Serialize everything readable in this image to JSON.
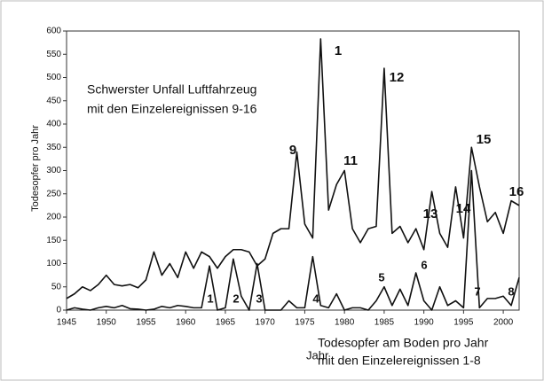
{
  "chart_data": {
    "type": "line",
    "ylabel": "Todesopfer pro Jahr",
    "xlabel": "Jahr",
    "note_top": [
      "Schwerster Unfall Luftfahrzeug",
      "mit den Einzelereignissen 9-16"
    ],
    "note_bottom": [
      "Todesopfer am Boden pro Jahr",
      "mit den Einzelereignissen 1-8"
    ],
    "annotations_top": [
      "1",
      "12",
      "9",
      "11",
      "13",
      "14",
      "15",
      "16"
    ],
    "annotations_bottom": [
      "1",
      "2",
      "3",
      "4",
      "5",
      "6",
      "7",
      "8"
    ],
    "x": [
      1945,
      1946,
      1947,
      1948,
      1949,
      1950,
      1951,
      1952,
      1953,
      1954,
      1955,
      1956,
      1957,
      1958,
      1959,
      1960,
      1961,
      1962,
      1963,
      1964,
      1965,
      1966,
      1967,
      1968,
      1969,
      1970,
      1971,
      1972,
      1973,
      1974,
      1975,
      1976,
      1977,
      1978,
      1979,
      1980,
      1981,
      1982,
      1983,
      1984,
      1985,
      1986,
      1987,
      1988,
      1989,
      1990,
      1991,
      1992,
      1993,
      1994,
      1995,
      1996,
      1997,
      1998,
      1999,
      2000,
      2001,
      2002
    ],
    "series": [
      {
        "color": "#111111",
        "values": [
          25,
          35,
          50,
          42,
          55,
          75,
          55,
          52,
          55,
          48,
          65,
          125,
          75,
          100,
          70,
          125,
          90,
          125,
          115,
          90,
          115,
          130,
          130,
          125,
          95,
          110,
          165,
          175,
          175,
          340,
          185,
          155,
          583,
          215,
          270,
          300,
          175,
          145,
          175,
          180,
          520,
          165,
          180,
          145,
          175,
          130,
          255,
          165,
          135,
          265,
          155,
          350,
          265,
          190,
          210,
          165,
          235,
          225
        ]
      },
      {
        "color": "#111111",
        "values": [
          0,
          5,
          2,
          0,
          5,
          8,
          5,
          10,
          3,
          2,
          0,
          2,
          8,
          5,
          10,
          8,
          5,
          5,
          95,
          0,
          5,
          110,
          30,
          0,
          100,
          0,
          0,
          0,
          20,
          5,
          5,
          115,
          10,
          5,
          35,
          0,
          5,
          5,
          0,
          20,
          50,
          10,
          45,
          10,
          80,
          20,
          0,
          50,
          10,
          20,
          5,
          300,
          5,
          25,
          25,
          30,
          10,
          70
        ]
      }
    ],
    "xlim": [
      1945,
      2002
    ],
    "xticks": [
      1945,
      1950,
      1955,
      1960,
      1965,
      1970,
      1975,
      1980,
      1985,
      1990,
      1995,
      2000
    ],
    "ylim": [
      0,
      600
    ],
    "yticks": [
      0,
      50,
      100,
      150,
      200,
      250,
      300,
      350,
      400,
      450,
      500,
      550,
      600
    ]
  }
}
